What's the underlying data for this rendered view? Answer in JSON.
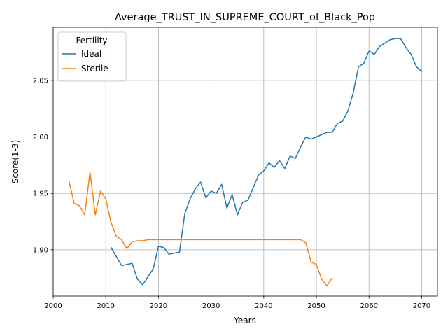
{
  "chart_data": {
    "type": "line",
    "title": "Average_TRUST_IN_SUPREME_COURT_of_Black_Pop",
    "xlabel": "Years",
    "ylabel": "Score(1-3)",
    "xlim": [
      2000,
      2073
    ],
    "ylim": [
      1.859,
      2.097
    ],
    "xticks": [
      2000,
      2010,
      2020,
      2030,
      2040,
      2050,
      2060,
      2070
    ],
    "yticks": [
      1.9,
      1.95,
      2.0,
      2.05
    ],
    "ytick_labels": [
      "1.90",
      "1.95",
      "2.00",
      "2.05"
    ],
    "grid": true,
    "legend": {
      "title": "Fertility",
      "placement": "top-left"
    },
    "series": [
      {
        "name": "Ideal",
        "color": "#1f77b4",
        "x": [
          2011,
          2012,
          2013,
          2014,
          2015,
          2016,
          2017,
          2018,
          2019,
          2020,
          2021,
          2022,
          2023,
          2024,
          2025,
          2026,
          2027,
          2028,
          2029,
          2030,
          2031,
          2032,
          2033,
          2034,
          2035,
          2036,
          2037,
          2038,
          2039,
          2040,
          2041,
          2042,
          2043,
          2044,
          2045,
          2046,
          2047,
          2048,
          2049,
          2050,
          2051,
          2052,
          2053,
          2054,
          2055,
          2056,
          2057,
          2058,
          2059,
          2060,
          2061,
          2062,
          2063,
          2064,
          2065,
          2066,
          2067,
          2068,
          2069,
          2070
        ],
        "y": [
          1.902,
          1.894,
          1.886,
          1.887,
          1.888,
          1.874,
          1.869,
          1.876,
          1.883,
          1.903,
          1.902,
          1.896,
          1.897,
          1.898,
          1.932,
          1.945,
          1.954,
          1.96,
          1.946,
          1.952,
          1.95,
          1.958,
          1.937,
          1.949,
          1.931,
          1.942,
          1.944,
          1.955,
          1.966,
          1.97,
          1.977,
          1.973,
          1.979,
          1.972,
          1.983,
          1.981,
          1.991,
          2.0,
          1.998,
          2.0,
          2.002,
          2.004,
          2.004,
          2.012,
          2.014,
          2.023,
          2.039,
          2.062,
          2.065,
          2.076,
          2.073,
          2.08,
          2.083,
          2.086,
          2.087,
          2.087,
          2.079,
          2.073,
          2.062,
          2.058
        ]
      },
      {
        "name": "Sterile",
        "color": "#ff7f0e",
        "x": [
          2003,
          2004,
          2005,
          2006,
          2007,
          2008,
          2009,
          2010,
          2011,
          2012,
          2013,
          2014,
          2015,
          2016,
          2017,
          2018,
          2019,
          2020,
          2021,
          2022,
          2023,
          2024,
          2025,
          2026,
          2027,
          2028,
          2029,
          2030,
          2031,
          2032,
          2033,
          2034,
          2035,
          2036,
          2037,
          2038,
          2039,
          2040,
          2041,
          2042,
          2043,
          2044,
          2045,
          2046,
          2047,
          2048,
          2049,
          2050,
          2051,
          2052,
          2053
        ],
        "y": [
          1.961,
          1.941,
          1.939,
          1.931,
          1.969,
          1.931,
          1.952,
          1.945,
          1.924,
          1.912,
          1.909,
          1.901,
          1.907,
          1.908,
          1.908,
          1.909,
          1.909,
          1.909,
          1.909,
          1.909,
          1.909,
          1.909,
          1.909,
          1.909,
          1.909,
          1.909,
          1.909,
          1.909,
          1.909,
          1.909,
          1.909,
          1.909,
          1.909,
          1.909,
          1.909,
          1.909,
          1.909,
          1.909,
          1.909,
          1.909,
          1.909,
          1.909,
          1.909,
          1.909,
          1.909,
          1.906,
          1.889,
          1.887,
          1.874,
          1.868,
          1.875
        ]
      }
    ]
  }
}
